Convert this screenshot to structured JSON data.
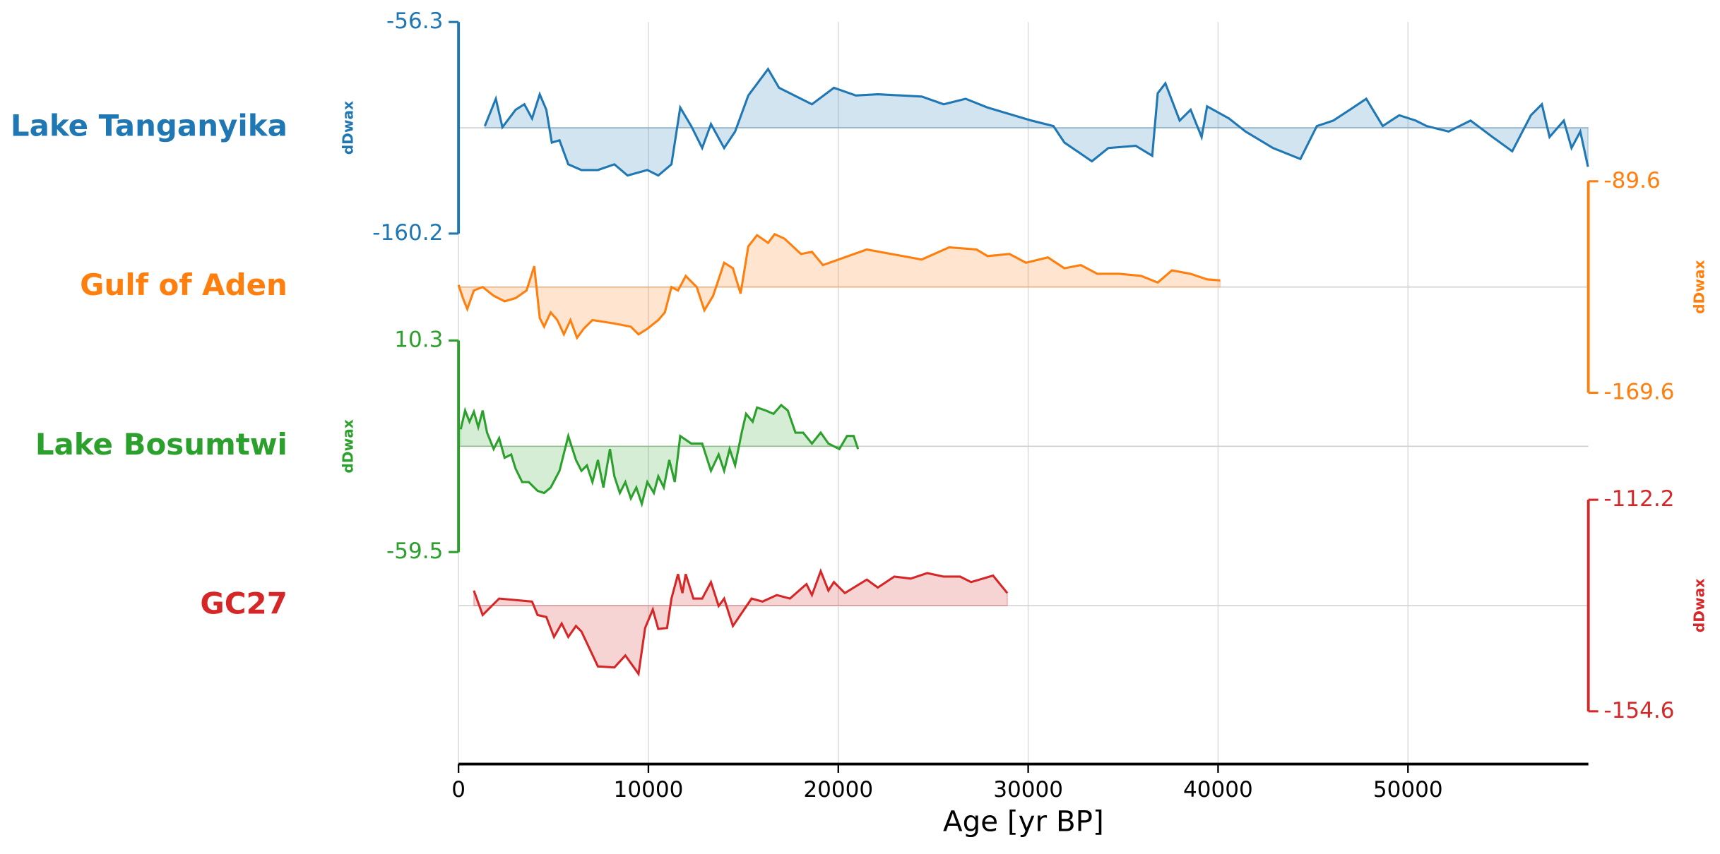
{
  "chart_data": {
    "type": "stack",
    "xlabel": "Age [yr BP]",
    "xlim": [
      0,
      59500
    ],
    "xticks": [
      0,
      10000,
      20000,
      30000,
      40000,
      50000
    ],
    "grid": true,
    "series": [
      {
        "name": "Lake Tanganyika",
        "color": "#1f77b4",
        "ylabel": "dDwax",
        "axis_side": "left",
        "ylim": [
          -160.2,
          -56.3
        ],
        "yticks": [
          -160.2,
          -56.3
        ],
        "x": [
          1387,
          1965,
          2312,
          3006,
          3468,
          3873,
          4277,
          4624,
          4913,
          5318,
          5780,
          6474,
          7341,
          8208,
          8902,
          9942,
          10520,
          11214,
          11676,
          12254,
          12832,
          13294,
          13988,
          14566,
          15260,
          16301,
          16879,
          18613,
          19769,
          20925,
          22081,
          24393,
          25549,
          26705,
          27861,
          30173,
          31329,
          31907,
          33353,
          34220,
          35665,
          36532,
          36821,
          37225,
          37977,
          38555,
          39133,
          39422,
          40578,
          41445,
          42890,
          44335,
          45202,
          46069,
          46936,
          47803,
          48671,
          49538,
          50405,
          50983,
          52139,
          53295,
          54451,
          55491,
          56474,
          57052,
          57457,
          58208,
          58613,
          59075,
          59480
        ],
        "values": [
          -107.4,
          -94.0,
          -108.0,
          -99.4,
          -96.7,
          -103.7,
          -91.8,
          -99.4,
          -115.5,
          -114.4,
          -126.2,
          -129.0,
          -129.0,
          -126.2,
          -131.7,
          -129.0,
          -131.7,
          -126.2,
          -98.3,
          -107.4,
          -118.2,
          -106.4,
          -118.2,
          -110.1,
          -92.4,
          -79.4,
          -88.6,
          -96.7,
          -88.6,
          -92.4,
          -91.8,
          -92.9,
          -96.7,
          -94.0,
          -98.3,
          -104.7,
          -107.4,
          -115.5,
          -124.7,
          -118.2,
          -117.1,
          -122.0,
          -91.3,
          -86.4,
          -104.7,
          -99.4,
          -112.8,
          -97.7,
          -103.7,
          -110.1,
          -118.2,
          -123.6,
          -107.4,
          -104.7,
          -99.4,
          -94.0,
          -107.4,
          -102.1,
          -104.7,
          -107.4,
          -110.1,
          -104.7,
          -112.8,
          -119.8,
          -102.1,
          -96.7,
          -112.8,
          -104.7,
          -118.2,
          -110.1,
          -127.4
        ]
      },
      {
        "name": "Gulf of Aden",
        "color": "#ff7f0e",
        "ylabel": "dDwax",
        "axis_side": "right",
        "ylim": [
          -169.6,
          -89.6
        ],
        "yticks": [
          -169.6,
          -89.6
        ],
        "x": [
          0,
          231,
          462,
          809,
          1272,
          1850,
          2428,
          3006,
          3584,
          3988,
          4277,
          4508,
          4855,
          5202,
          5549,
          5896,
          6242,
          6589,
          7052,
          8208,
          9075,
          9479,
          9942,
          10520,
          10866,
          11214,
          11560,
          11965,
          12543,
          12947,
          13410,
          13988,
          14450,
          14855,
          15260,
          15722,
          16301,
          16647,
          17167,
          18034,
          18613,
          19191,
          21502,
          24392,
          25837,
          27282,
          27860,
          29016,
          29883,
          31039,
          31906,
          32773,
          33640,
          34796,
          35952,
          36819,
          37570,
          38553,
          39420,
          40113
        ],
        "values": [
          -128.8,
          -133.8,
          -137.9,
          -130.9,
          -129.6,
          -132.9,
          -135.0,
          -133.8,
          -130.9,
          -121.7,
          -141.3,
          -144.6,
          -139.2,
          -142.1,
          -147.5,
          -142.1,
          -148.8,
          -145.4,
          -142.1,
          -143.4,
          -144.6,
          -147.5,
          -145.4,
          -142.1,
          -139.2,
          -129.6,
          -130.9,
          -125.4,
          -129.6,
          -138.4,
          -132.9,
          -120.4,
          -122.5,
          -132.1,
          -114.2,
          -110.0,
          -112.9,
          -109.6,
          -111.3,
          -117.1,
          -116.3,
          -121.3,
          -115.4,
          -119.2,
          -114.6,
          -115.4,
          -117.9,
          -117.1,
          -120.4,
          -118.4,
          -122.5,
          -121.3,
          -124.6,
          -124.6,
          -125.4,
          -127.9,
          -123.3,
          -124.6,
          -126.7,
          -127.1
        ]
      },
      {
        "name": "Lake Bosumtwi",
        "color": "#2ca02c",
        "ylabel": "dDwax",
        "axis_side": "left",
        "ylim": [
          -59.5,
          10.3
        ],
        "yticks": [
          -59.5,
          10.3
        ],
        "x": [
          116,
          347,
          578,
          809,
          1040,
          1272,
          1503,
          1850,
          2139,
          2428,
          2774,
          3006,
          3352,
          3699,
          4162,
          4508,
          4855,
          5318,
          5780,
          6185,
          6474,
          6763,
          7052,
          7341,
          7630,
          7976,
          8208,
          8497,
          8786,
          9075,
          9364,
          9653,
          9942,
          10288,
          10520,
          10809,
          11098,
          11387,
          11676,
          12254,
          12832,
          13294,
          13699,
          13988,
          14277,
          14566,
          14912,
          15144,
          15490,
          15722,
          16184,
          16589,
          16993,
          17340,
          17745,
          18149,
          18612,
          19074,
          19479,
          20057,
          20461,
          20808,
          21039
        ],
        "values": [
          -19.0,
          -12.8,
          -16.5,
          -13.2,
          -18.3,
          -12.8,
          -20.1,
          -25.5,
          -21.9,
          -28.4,
          -27.3,
          -32.0,
          -36.4,
          -36.4,
          -39.3,
          -40.0,
          -38.2,
          -32.7,
          -21.2,
          -29.1,
          -32.7,
          -30.9,
          -36.4,
          -29.1,
          -38.2,
          -25.5,
          -34.5,
          -40.0,
          -36.4,
          -41.8,
          -38.2,
          -43.6,
          -36.4,
          -40.0,
          -34.5,
          -38.2,
          -29.1,
          -36.4,
          -21.2,
          -23.7,
          -23.7,
          -32.7,
          -27.3,
          -32.7,
          -25.5,
          -30.9,
          -20.1,
          -13.9,
          -16.5,
          -11.8,
          -12.8,
          -13.9,
          -11.0,
          -12.8,
          -20.1,
          -20.1,
          -23.7,
          -20.1,
          -23.7,
          -25.5,
          -21.2,
          -21.2,
          -25.5
        ]
      },
      {
        "name": "GC27",
        "color": "#d62728",
        "ylabel": "dDwax",
        "axis_side": "right",
        "ylim": [
          -154.6,
          -112.2
        ],
        "yticks": [
          -154.6,
          -112.2
        ],
        "x": [
          809,
          1272,
          2139,
          3873,
          4162,
          4624,
          5029,
          5433,
          5780,
          6185,
          6474,
          7341,
          8208,
          8786,
          9479,
          9826,
          10231,
          10520,
          10982,
          11214,
          11560,
          11791,
          11965,
          12370,
          12832,
          13294,
          13699,
          13988,
          14450,
          15433,
          16011,
          16762,
          17456,
          18323,
          18612,
          19074,
          19479,
          19768,
          20346,
          21502,
          22080,
          22947,
          23814,
          24681,
          25548,
          26415,
          26993,
          28149,
          28900
        ],
        "values": [
          -130.4,
          -135.3,
          -132.0,
          -132.6,
          -135.3,
          -135.7,
          -139.7,
          -137.0,
          -139.7,
          -137.5,
          -138.6,
          -145.6,
          -145.8,
          -143.4,
          -147.1,
          -137.9,
          -134.2,
          -138.1,
          -137.9,
          -132.0,
          -127.1,
          -130.9,
          -127.1,
          -132.0,
          -132.0,
          -128.7,
          -133.5,
          -132.0,
          -137.5,
          -132.0,
          -132.6,
          -131.3,
          -132.0,
          -129.1,
          -131.3,
          -126.5,
          -130.4,
          -128.7,
          -130.9,
          -128.2,
          -129.8,
          -127.6,
          -128.0,
          -126.9,
          -127.6,
          -127.6,
          -128.7,
          -127.4,
          -130.9
        ]
      }
    ]
  }
}
